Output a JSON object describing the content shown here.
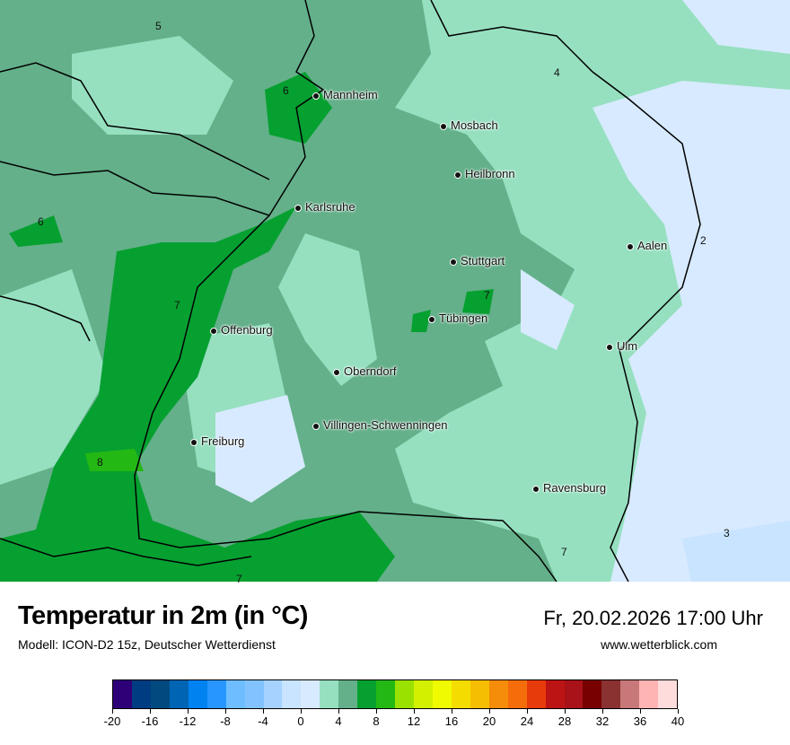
{
  "header": {
    "title": "Temperatur in 2m (in °C)",
    "subtitle": "Modell: ICON-D2 15z, Deutscher Wetterdienst",
    "datetime": "Fr, 20.02.2026 17:00 Uhr",
    "website": "www.wetterblick.com"
  },
  "map": {
    "cities": [
      "Mannheim",
      "Mosbach",
      "Heilbronn",
      "Karlsruhe",
      "Aalen",
      "Stuttgart",
      "Tübingen",
      "Offenburg",
      "Ulm",
      "Oberndorf",
      "Villingen-Schwenningen",
      "Freiburg",
      "Ravensburg"
    ],
    "contour_labels": [
      "5",
      "6",
      "4",
      "6",
      "7",
      "7",
      "8",
      "7",
      "7",
      "2",
      "3"
    ],
    "colors": {
      "cold": "#d8eaff",
      "cool": "#96e0c0",
      "mild": "#64b08a",
      "warm": "#06a030",
      "warmer": "#24b814"
    }
  },
  "legend": {
    "min": -20,
    "max": 40,
    "step": 2,
    "ticks": [
      "-20",
      "-16",
      "-12",
      "-8",
      "-4",
      "0",
      "4",
      "8",
      "12",
      "16",
      "20",
      "24",
      "28",
      "32",
      "36",
      "40"
    ],
    "colors": [
      "#2e0078",
      "#003c82",
      "#004a80",
      "#0064b4",
      "#0082f0",
      "#2896ff",
      "#6ebeff",
      "#82c3ff",
      "#a5d2ff",
      "#c8e4ff",
      "#d8eaff",
      "#96e0c0",
      "#64b08a",
      "#06a030",
      "#24b814",
      "#9be100",
      "#d2f000",
      "#f0fa00",
      "#f5dc00",
      "#f5be00",
      "#f58c0a",
      "#f56c0a",
      "#e83b0c",
      "#bc1414",
      "#a81218",
      "#780000",
      "#8a3232",
      "#c87878",
      "#ffb4b4",
      "#ffdcdc"
    ]
  }
}
